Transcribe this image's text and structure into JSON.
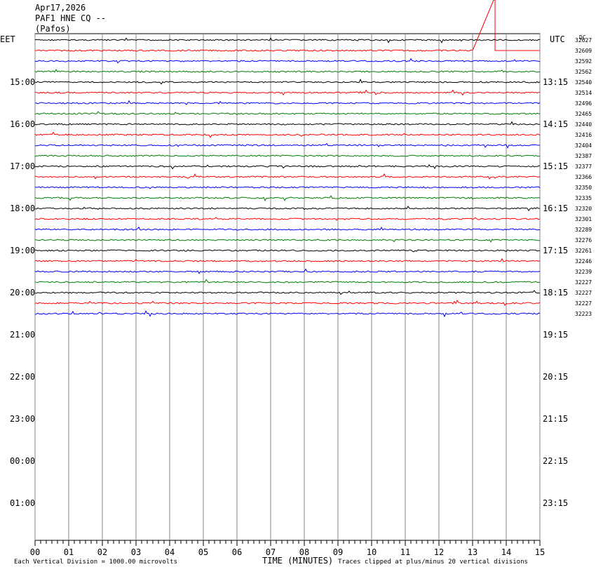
{
  "header": {
    "date": "Apr17,2026",
    "station": "PAF1 HNE CQ --",
    "location": "(Pafos)"
  },
  "left_axis": {
    "title": "EET",
    "labels": [
      "15:00",
      "16:00",
      "17:00",
      "18:00",
      "19:00",
      "20:00",
      "21:00",
      "22:00",
      "23:00",
      "00:00",
      "01:00"
    ]
  },
  "right_axis": {
    "title": "UTC",
    "labels": [
      "13:15",
      "14:15",
      "15:15",
      "16:15",
      "17:15",
      "18:15",
      "19:15",
      "20:15",
      "21:15",
      "22:15",
      "23:15"
    ]
  },
  "dc_label": "DC",
  "trace_offsets": [
    32627,
    32609,
    32592,
    32562,
    32540,
    32514,
    32496,
    32465,
    32440,
    32416,
    32404,
    32387,
    32377,
    32366,
    32350,
    32335,
    32320,
    32301,
    32289,
    32276,
    32261,
    32246,
    32239,
    32227,
    32227,
    32227,
    32223
  ],
  "trace_colors": [
    "#000000",
    "#ff0000",
    "#0000ff",
    "#007f00"
  ],
  "time_axis": {
    "title": "TIME (MINUTES)",
    "labels": [
      "00",
      "01",
      "02",
      "03",
      "04",
      "05",
      "06",
      "07",
      "08",
      "09",
      "10",
      "11",
      "12",
      "13",
      "14",
      "15"
    ]
  },
  "footer": {
    "scale_note": "Each Vertical Division = 1000.00 microvolts",
    "clip_note": "Traces clipped at plus/minus 20 vertical divisions"
  }
}
